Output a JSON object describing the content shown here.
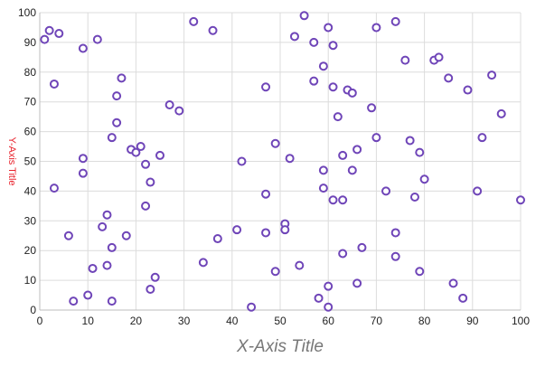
{
  "chart_data": {
    "type": "scatter",
    "title": "",
    "xlabel": "X-Axis Title",
    "ylabel": "Y-Axis Title",
    "xlim": [
      0,
      100
    ],
    "ylim": [
      0,
      100
    ],
    "x_ticks": [
      "0",
      "10",
      "20",
      "30",
      "40",
      "50",
      "60",
      "70",
      "80",
      "90",
      "100"
    ],
    "y_ticks": [
      "0",
      "10",
      "20",
      "30",
      "40",
      "50",
      "60",
      "70",
      "80",
      "90",
      "100"
    ],
    "grid": true,
    "legend": "none",
    "colors": {
      "marker": "#6f45b8",
      "xlabel": "#777777",
      "ylabel": "#e8202a",
      "grid": "#dcdcdc"
    },
    "series": [
      {
        "points": [
          [
            1,
            91
          ],
          [
            2,
            94
          ],
          [
            4,
            93
          ],
          [
            3,
            76
          ],
          [
            3,
            41
          ],
          [
            6,
            25
          ],
          [
            7,
            3
          ],
          [
            9,
            88
          ],
          [
            9,
            51
          ],
          [
            9,
            46
          ],
          [
            10,
            5
          ],
          [
            11,
            14
          ],
          [
            12,
            91
          ],
          [
            13,
            28
          ],
          [
            14,
            32
          ],
          [
            14,
            15
          ],
          [
            15,
            21
          ],
          [
            15,
            3
          ],
          [
            15,
            58
          ],
          [
            16,
            72
          ],
          [
            16,
            63
          ],
          [
            17,
            78
          ],
          [
            18,
            25
          ],
          [
            19,
            54
          ],
          [
            20,
            53
          ],
          [
            21,
            55
          ],
          [
            22,
            49
          ],
          [
            22,
            35
          ],
          [
            23,
            43
          ],
          [
            23,
            7
          ],
          [
            24,
            11
          ],
          [
            25,
            52
          ],
          [
            27,
            69
          ],
          [
            29,
            67
          ],
          [
            32,
            97
          ],
          [
            34,
            16
          ],
          [
            36,
            94
          ],
          [
            37,
            24
          ],
          [
            41,
            27
          ],
          [
            42,
            50
          ],
          [
            44,
            1
          ],
          [
            47,
            75
          ],
          [
            47,
            39
          ],
          [
            47,
            26
          ],
          [
            49,
            56
          ],
          [
            49,
            13
          ],
          [
            51,
            29
          ],
          [
            51,
            27
          ],
          [
            52,
            51
          ],
          [
            53,
            92
          ],
          [
            54,
            15
          ],
          [
            55,
            99
          ],
          [
            57,
            90
          ],
          [
            57,
            77
          ],
          [
            58,
            4
          ],
          [
            59,
            82
          ],
          [
            59,
            47
          ],
          [
            59,
            41
          ],
          [
            60,
            95
          ],
          [
            60,
            8
          ],
          [
            60,
            1
          ],
          [
            61,
            89
          ],
          [
            61,
            75
          ],
          [
            61,
            37
          ],
          [
            62,
            65
          ],
          [
            63,
            52
          ],
          [
            63,
            37
          ],
          [
            63,
            19
          ],
          [
            64,
            74
          ],
          [
            65,
            73
          ],
          [
            65,
            47
          ],
          [
            66,
            54
          ],
          [
            66,
            9
          ],
          [
            67,
            21
          ],
          [
            69,
            68
          ],
          [
            70,
            95
          ],
          [
            70,
            58
          ],
          [
            72,
            40
          ],
          [
            74,
            97
          ],
          [
            74,
            26
          ],
          [
            74,
            18
          ],
          [
            76,
            84
          ],
          [
            77,
            57
          ],
          [
            78,
            38
          ],
          [
            79,
            53
          ],
          [
            79,
            13
          ],
          [
            80,
            44
          ],
          [
            82,
            84
          ],
          [
            83,
            85
          ],
          [
            85,
            78
          ],
          [
            86,
            9
          ],
          [
            88,
            4
          ],
          [
            89,
            74
          ],
          [
            91,
            40
          ],
          [
            92,
            58
          ],
          [
            94,
            79
          ],
          [
            96,
            66
          ],
          [
            100,
            37
          ]
        ]
      }
    ]
  }
}
